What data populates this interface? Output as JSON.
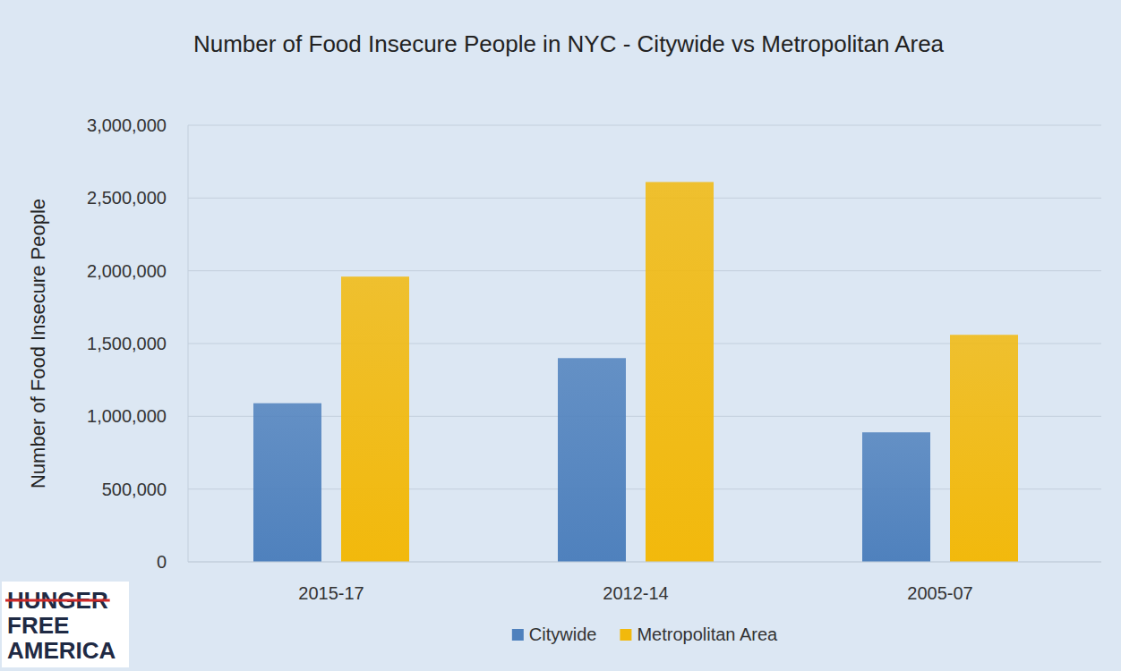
{
  "chart_data": {
    "type": "bar",
    "title": "Number of Food Insecure People in NYC - Citywide vs Metropolitan Area",
    "y_label": "Number of Food Insecure People",
    "categories": [
      "2015-17",
      "2012-14",
      "2005-07"
    ],
    "series": [
      {
        "name": "Citywide",
        "color": "#4f81bd",
        "values": [
          1090000,
          1400000,
          890000
        ]
      },
      {
        "name": "Metropolitan Area",
        "color": "#f2b90c",
        "values": [
          1960000,
          2610000,
          1560000
        ]
      }
    ],
    "ylim": [
      0,
      3000000
    ],
    "yticks": [
      0,
      {
        "value": 500000,
        "label": "500,000"
      },
      {
        "value": 1000000,
        "label": "1,000,000"
      },
      {
        "value": 1500000,
        "label": "1,500,000"
      },
      {
        "value": 2000000,
        "label": "2,000,000"
      },
      {
        "value": 2500000,
        "label": "2,500,000"
      },
      {
        "value": 3000000,
        "label": "3,000,000"
      }
    ],
    "grid": true,
    "legend": "bottom",
    "logo": [
      "HUNGER",
      "FREE",
      "AMERICA"
    ]
  }
}
